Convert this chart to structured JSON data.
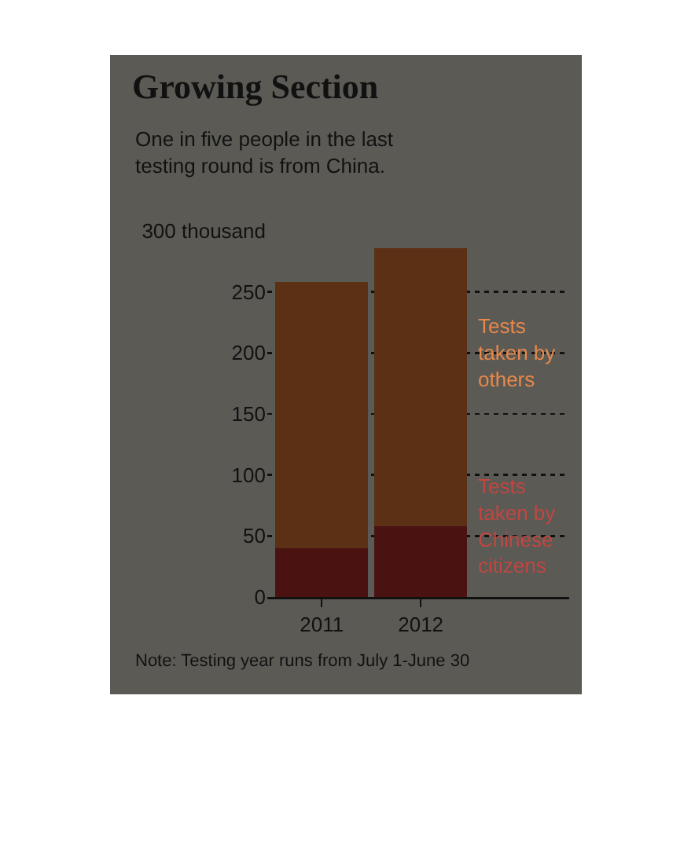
{
  "chart_data": {
    "type": "bar",
    "title": "Growing Section",
    "subtitle": "One in five people in the last testing round is from China.",
    "categories": [
      "2011",
      "2012"
    ],
    "series": [
      {
        "name": "Tests taken by Chinese citizens",
        "color": "#4a1210",
        "values": [
          40,
          58
        ]
      },
      {
        "name": "Tests taken by others",
        "color": "#5c3014",
        "values": [
          218,
          228
        ]
      }
    ],
    "stacked": true,
    "ylim": [
      0,
      300
    ],
    "yticks": [
      0,
      50,
      100,
      150,
      200,
      250,
      {
        "value": 300,
        "label": "300 thousand"
      }
    ],
    "grid": "y",
    "legend": false,
    "annotations": [
      "Note: Testing year runs from July 1-June 30"
    ]
  }
}
